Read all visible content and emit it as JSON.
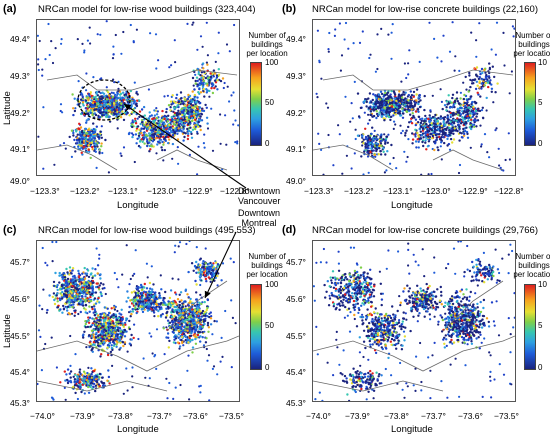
{
  "panels": [
    {
      "letter": "(a)",
      "title": "NRCan model for low-rise wood buildings (323,404)",
      "xlabel": "Longitude",
      "ylabel": "Latitude",
      "xticks": [
        "−123.3°",
        "−123.2°",
        "−123.1°",
        "−123.0°",
        "−122.9°",
        "−122.8°"
      ],
      "yticks": [
        "49.4°",
        "49.3°",
        "49.2°",
        "49.1°",
        "49.0°"
      ],
      "colorbar": {
        "title_lines": [
          "Number of",
          "buildings",
          "per location"
        ],
        "ticks": [
          "100",
          "50",
          "0"
        ]
      }
    },
    {
      "letter": "(b)",
      "title": "NRCan model for low-rise concrete buildings (22,160)",
      "xlabel": "Longitude",
      "ylabel": "",
      "xticks": [
        "−123.3°",
        "−123.2°",
        "−123.1°",
        "−123.0°",
        "−122.9°",
        "−122.8°"
      ],
      "yticks": [
        "49.4°",
        "49.3°",
        "49.2°",
        "49.1°",
        "49.0°"
      ],
      "colorbar": {
        "title_lines": [
          "Number of",
          "buildings",
          "per location"
        ],
        "ticks": [
          "10",
          "5",
          "0"
        ]
      }
    },
    {
      "letter": "(c)",
      "title": "NRCan model for low-rise wood buildings (495,553)",
      "xlabel": "Longitude",
      "ylabel": "Latitude",
      "xticks": [
        "−74.0°",
        "−73.9°",
        "−73.8°",
        "−73.7°",
        "−73.6°",
        "−73.5°"
      ],
      "yticks": [
        "45.7°",
        "45.6°",
        "45.5°",
        "45.4°",
        "45.3°"
      ],
      "colorbar": {
        "title_lines": [
          "Number of",
          "buildings",
          "per location"
        ],
        "ticks": [
          "100",
          "50",
          "0"
        ]
      }
    },
    {
      "letter": "(d)",
      "title": "NRCan model for low-rise concrete buildings (29,766)",
      "xlabel": "Longitude",
      "ylabel": "",
      "xticks": [
        "−74.0°",
        "−73.9°",
        "−73.8°",
        "−73.7°",
        "−73.6°",
        "−73.5°"
      ],
      "yticks": [
        "45.7°",
        "45.6°",
        "45.5°",
        "45.4°",
        "45.3°"
      ],
      "colorbar": {
        "title_lines": [
          "Number of",
          "buildings",
          "per location"
        ],
        "ticks": [
          "10",
          "5",
          "0"
        ]
      }
    }
  ],
  "annotations": {
    "vancouver": [
      "Downtown",
      "Vancouver"
    ],
    "montreal": [
      "Downtown",
      "Montreal"
    ]
  },
  "colors": {
    "low": "#1a237e",
    "mid": "#37c6b0",
    "high": "#de1f1f",
    "coast": "#6a6a6a"
  }
}
